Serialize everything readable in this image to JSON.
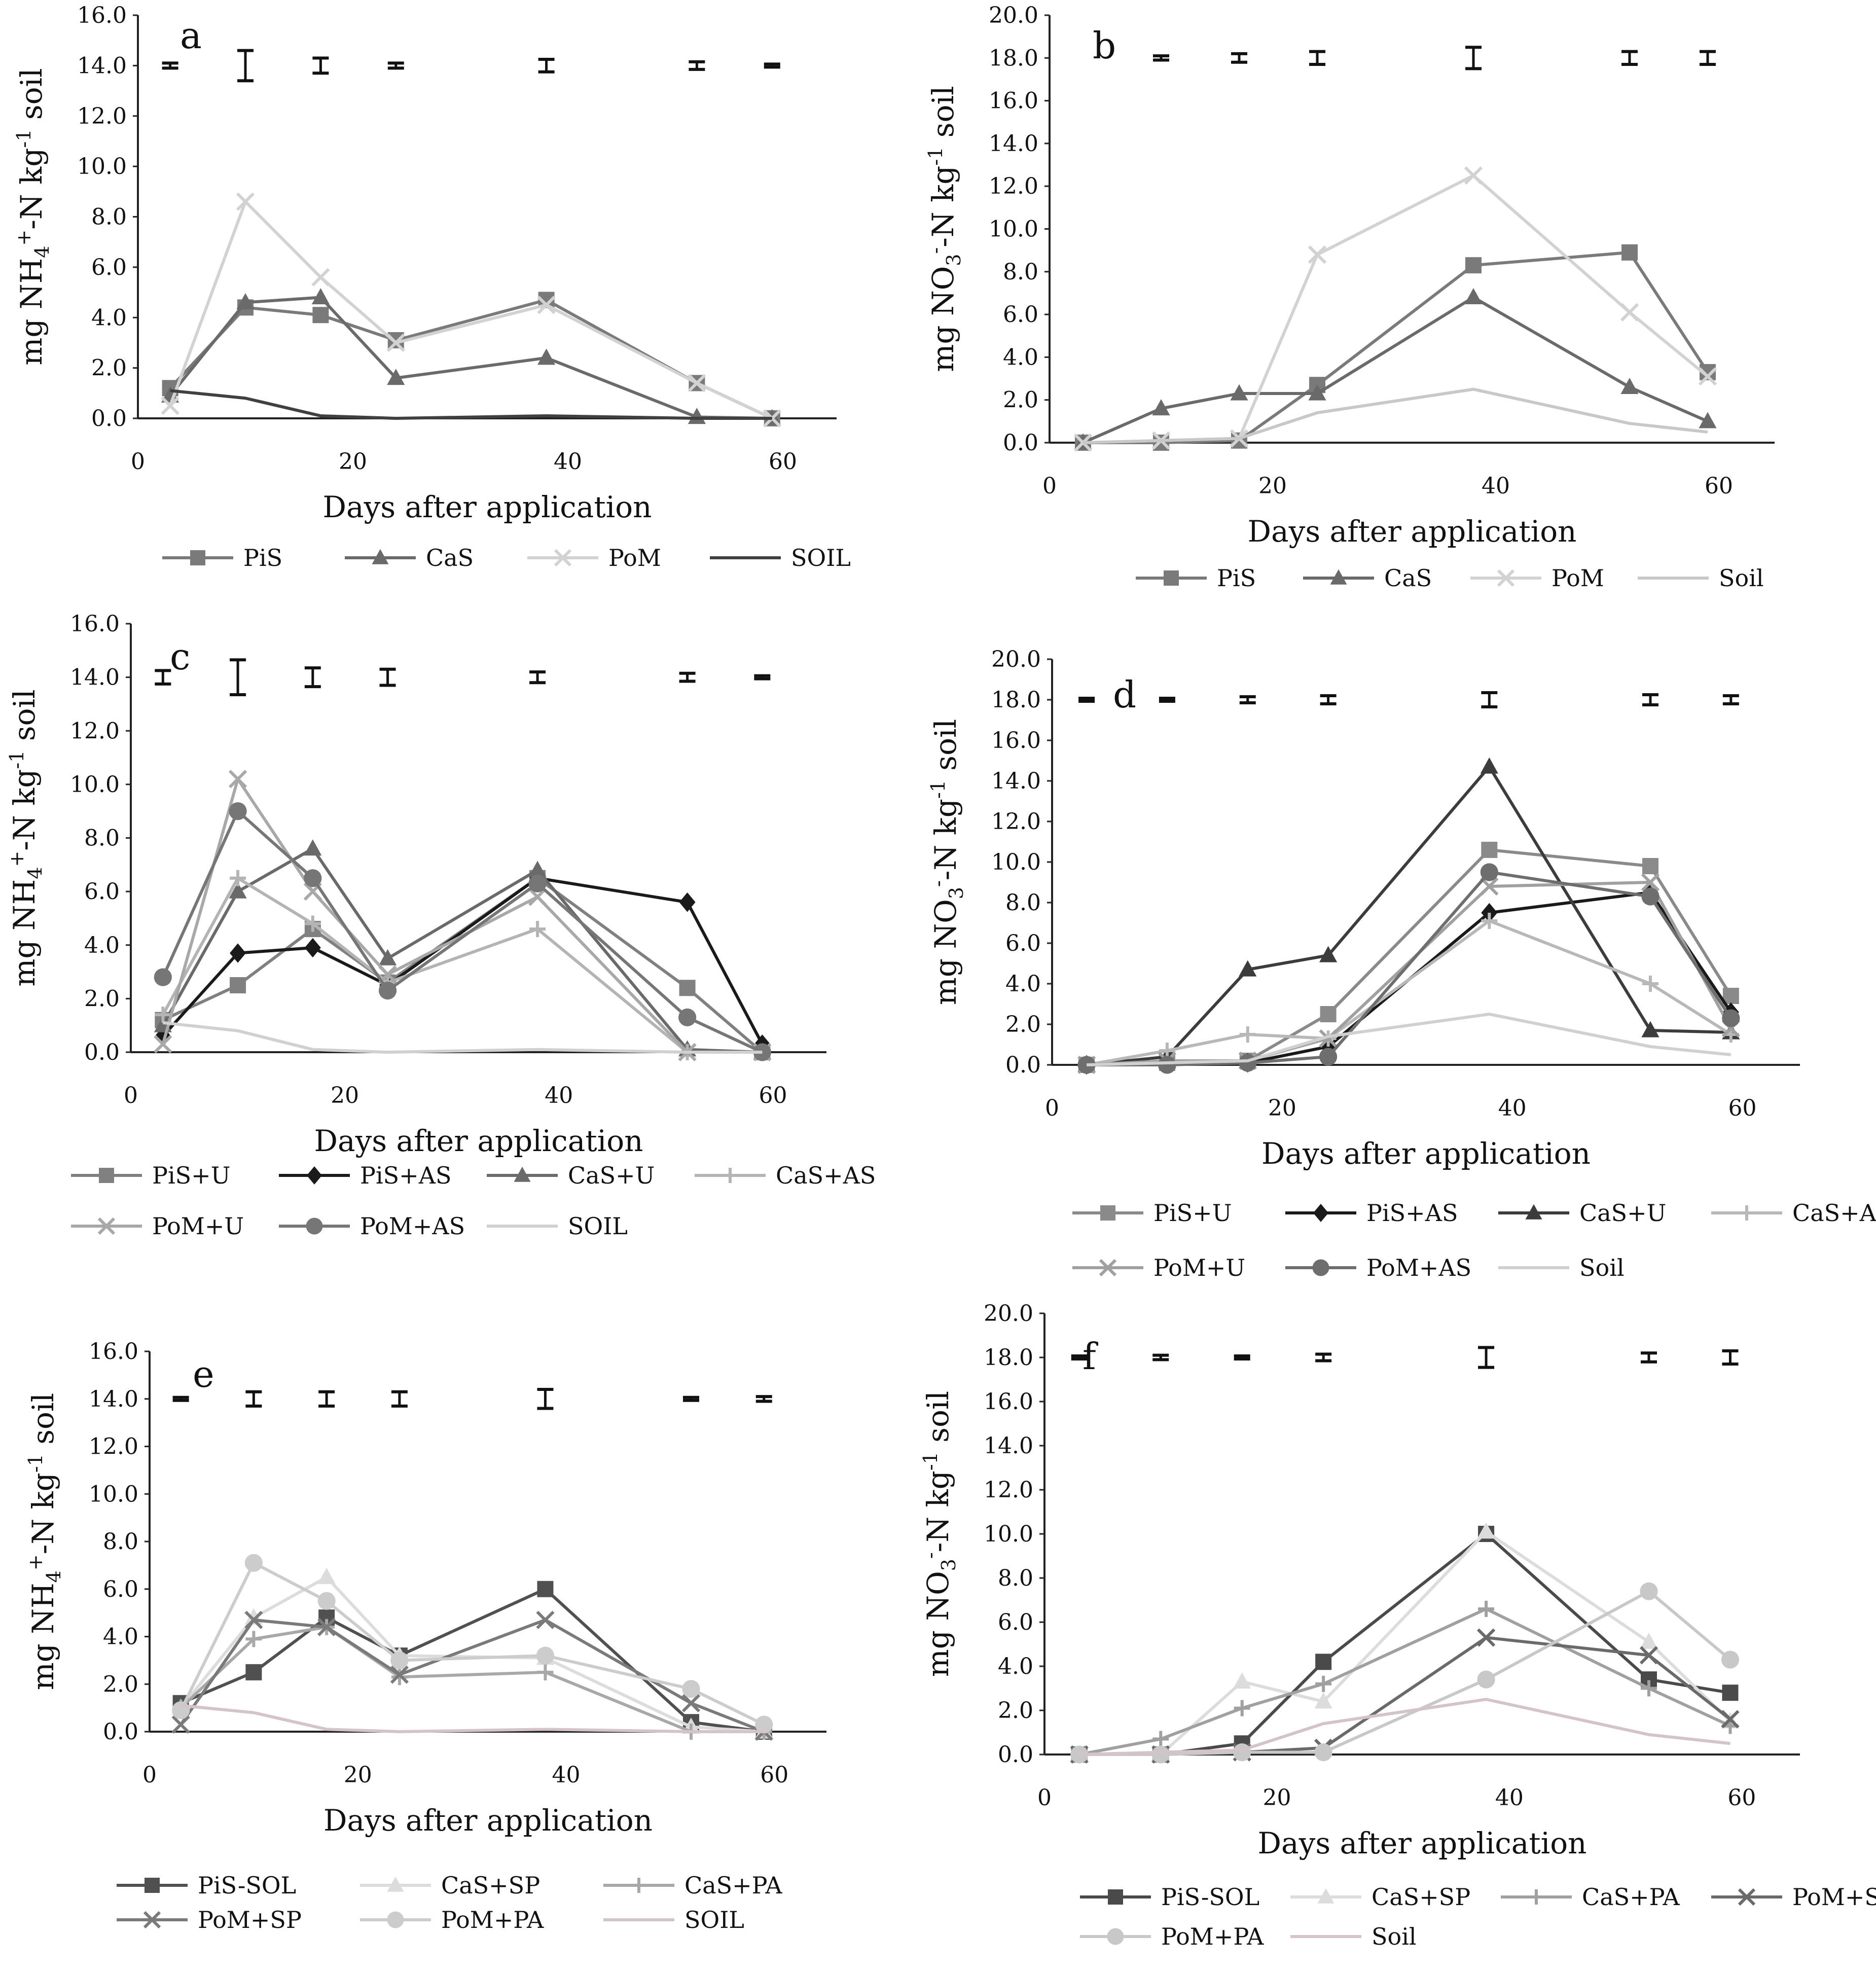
{
  "chart_data": [
    {
      "panel": "a",
      "type": "line",
      "xlabel": "Days after application",
      "ylabel_parts": [
        "mg NH",
        "4",
        "+",
        "-N  kg",
        "-1",
        " soil"
      ],
      "xlim": [
        0,
        65
      ],
      "xticks": [
        0,
        20,
        40,
        60
      ],
      "ylim": [
        0,
        16
      ],
      "yticks": [
        0.0,
        2.0,
        4.0,
        6.0,
        8.0,
        10.0,
        12.0,
        14.0,
        16.0
      ],
      "legend_cols": 4,
      "errorbars": {
        "y": 14.0,
        "points": [
          [
            3,
            0.1
          ],
          [
            10,
            0.6
          ],
          [
            17,
            0.3
          ],
          [
            24,
            0.1
          ],
          [
            38,
            0.25
          ],
          [
            52,
            0.15
          ],
          [
            59,
            0.05
          ]
        ]
      },
      "series": [
        {
          "name": "PiS",
          "color": "#7a7a7a",
          "marker": "square",
          "x": [
            3,
            10,
            17,
            24,
            38,
            52,
            59
          ],
          "y": [
            1.2,
            4.4,
            4.1,
            3.1,
            4.7,
            1.4,
            0.0
          ]
        },
        {
          "name": "CaS",
          "color": "#6a6a6a",
          "marker": "triangle",
          "x": [
            3,
            10,
            17,
            24,
            38,
            52,
            59
          ],
          "y": [
            0.9,
            4.6,
            4.8,
            1.6,
            2.4,
            0.05,
            0.0
          ]
        },
        {
          "name": "PoM",
          "color": "#d2d2d2",
          "marker": "x",
          "x": [
            3,
            10,
            17,
            24,
            38,
            52,
            59
          ],
          "y": [
            0.5,
            8.6,
            5.6,
            3.0,
            4.5,
            1.4,
            0.0
          ]
        },
        {
          "name": "SOIL",
          "color": "#404040",
          "marker": "none",
          "x": [
            3,
            10,
            17,
            24,
            38,
            52,
            59
          ],
          "y": [
            1.1,
            0.8,
            0.1,
            0.0,
            0.1,
            0.0,
            0.0
          ]
        }
      ]
    },
    {
      "panel": "b",
      "type": "line",
      "xlabel": "Days after application",
      "ylabel_parts": [
        "mg NO",
        "3",
        "-",
        "-N kg",
        "-1",
        " soil"
      ],
      "xlim": [
        0,
        65
      ],
      "xticks": [
        0,
        20,
        40,
        60
      ],
      "ylim": [
        0,
        20
      ],
      "yticks": [
        0.0,
        2.0,
        4.0,
        6.0,
        8.0,
        10.0,
        12.0,
        14.0,
        16.0,
        18.0,
        20.0
      ],
      "legend_cols": 4,
      "errorbars": {
        "y": 18.0,
        "points": [
          [
            10,
            0.1
          ],
          [
            17,
            0.2
          ],
          [
            24,
            0.3
          ],
          [
            38,
            0.5
          ],
          [
            52,
            0.3
          ],
          [
            59,
            0.3
          ]
        ]
      },
      "series": [
        {
          "name": "PiS",
          "color": "#7a7a7a",
          "marker": "square",
          "x": [
            3,
            10,
            17,
            24,
            38,
            52,
            59
          ],
          "y": [
            0.0,
            0.0,
            0.1,
            2.7,
            8.3,
            8.9,
            3.3
          ]
        },
        {
          "name": "CaS",
          "color": "#6a6a6a",
          "marker": "triangle",
          "x": [
            3,
            10,
            17,
            24,
            38,
            52,
            59
          ],
          "y": [
            0.0,
            1.6,
            2.3,
            2.3,
            6.8,
            2.6,
            1.0
          ]
        },
        {
          "name": "PoM",
          "color": "#d2d2d2",
          "marker": "x",
          "x": [
            3,
            10,
            17,
            24,
            38,
            52,
            59
          ],
          "y": [
            0.0,
            0.1,
            0.2,
            8.8,
            12.5,
            6.1,
            3.1
          ]
        },
        {
          "name": "Soil",
          "color": "#c8c8c8",
          "marker": "none",
          "x": [
            3,
            10,
            17,
            24,
            38,
            52,
            59
          ],
          "y": [
            0.0,
            0.1,
            0.2,
            1.4,
            2.5,
            0.9,
            0.5
          ]
        }
      ]
    },
    {
      "panel": "c",
      "type": "line",
      "xlabel": "Days after application",
      "ylabel_parts": [
        "mg NH",
        "4",
        "+",
        "-N  kg",
        "-1",
        " soil"
      ],
      "xlim": [
        0,
        65
      ],
      "xticks": [
        0,
        20,
        40,
        60
      ],
      "ylim": [
        0,
        16
      ],
      "yticks": [
        0.0,
        2.0,
        4.0,
        6.0,
        8.0,
        10.0,
        12.0,
        14.0,
        16.0
      ],
      "legend_cols": 4,
      "errorbars": {
        "y": 14.0,
        "points": [
          [
            3,
            0.25
          ],
          [
            10,
            0.65
          ],
          [
            17,
            0.35
          ],
          [
            24,
            0.3
          ],
          [
            38,
            0.2
          ],
          [
            52,
            0.15
          ],
          [
            59,
            0.05
          ]
        ]
      },
      "series": [
        {
          "name": "PiS+U",
          "color": "#808080",
          "marker": "square",
          "x": [
            3,
            10,
            17,
            24,
            38,
            52,
            59
          ],
          "y": [
            1.2,
            2.5,
            4.6,
            2.6,
            6.5,
            2.4,
            0.0
          ]
        },
        {
          "name": "PiS+AS",
          "color": "#1a1a1a",
          "marker": "diamond",
          "x": [
            3,
            10,
            17,
            24,
            38,
            52,
            59
          ],
          "y": [
            0.6,
            3.7,
            3.9,
            2.5,
            6.5,
            5.6,
            0.3
          ]
        },
        {
          "name": "CaS+U",
          "color": "#6a6a6a",
          "marker": "triangle",
          "x": [
            3,
            10,
            17,
            24,
            38,
            52,
            59
          ],
          "y": [
            1.0,
            6.0,
            7.6,
            3.5,
            6.8,
            0.1,
            0.0
          ]
        },
        {
          "name": "CaS+AS",
          "color": "#b4b4b4",
          "marker": "plus",
          "x": [
            3,
            10,
            17,
            24,
            38,
            52,
            59
          ],
          "y": [
            1.4,
            6.5,
            4.8,
            2.6,
            4.6,
            0.0,
            0.0
          ]
        },
        {
          "name": "PoM+U",
          "color": "#a8a8a8",
          "marker": "x",
          "x": [
            3,
            10,
            17,
            24,
            38,
            52,
            59
          ],
          "y": [
            0.3,
            10.2,
            6.0,
            2.9,
            5.8,
            0.0,
            0.0
          ]
        },
        {
          "name": "PoM+AS",
          "color": "#767676",
          "marker": "circle",
          "x": [
            3,
            10,
            17,
            24,
            38,
            52,
            59
          ],
          "y": [
            2.8,
            9.0,
            6.5,
            2.3,
            6.3,
            1.3,
            0.0
          ]
        },
        {
          "name": "SOIL",
          "color": "#d0d0d0",
          "marker": "none",
          "x": [
            3,
            10,
            17,
            24,
            38,
            52,
            59
          ],
          "y": [
            1.1,
            0.8,
            0.1,
            0.0,
            0.1,
            0.0,
            0.0
          ]
        }
      ]
    },
    {
      "panel": "d",
      "type": "line",
      "xlabel": "Days after application",
      "ylabel_parts": [
        "mg NO",
        "3",
        "-",
        "-N kg",
        "-1",
        " soil"
      ],
      "xlim": [
        0,
        65
      ],
      "xticks": [
        0,
        20,
        40,
        60
      ],
      "ylim": [
        0,
        20
      ],
      "yticks": [
        0.0,
        2.0,
        4.0,
        6.0,
        8.0,
        10.0,
        12.0,
        14.0,
        16.0,
        18.0,
        20.0
      ],
      "legend_cols": 4,
      "errorbars": {
        "y": 18.0,
        "points": [
          [
            3,
            0.05
          ],
          [
            10,
            0.05
          ],
          [
            17,
            0.15
          ],
          [
            24,
            0.2
          ],
          [
            38,
            0.35
          ],
          [
            52,
            0.25
          ],
          [
            59,
            0.2
          ]
        ]
      },
      "series": [
        {
          "name": "PiS+U",
          "color": "#8a8a8a",
          "marker": "square",
          "x": [
            3,
            10,
            17,
            24,
            38,
            52,
            59
          ],
          "y": [
            0.0,
            0.1,
            0.2,
            2.5,
            10.6,
            9.8,
            3.4
          ]
        },
        {
          "name": "PiS+AS",
          "color": "#1a1a1a",
          "marker": "diamond",
          "x": [
            3,
            10,
            17,
            24,
            38,
            52,
            59
          ],
          "y": [
            0.0,
            0.1,
            0.1,
            0.9,
            7.5,
            8.5,
            2.6
          ]
        },
        {
          "name": "CaS+U",
          "color": "#3c3c3c",
          "marker": "triangle",
          "x": [
            3,
            10,
            17,
            24,
            38,
            52,
            59
          ],
          "y": [
            0.0,
            0.4,
            4.7,
            5.4,
            14.7,
            1.7,
            1.6
          ]
        },
        {
          "name": "CaS+AS",
          "color": "#b8b8b8",
          "marker": "plus",
          "x": [
            3,
            10,
            17,
            24,
            38,
            52,
            59
          ],
          "y": [
            0.0,
            0.7,
            1.5,
            1.3,
            7.1,
            4.0,
            1.5
          ]
        },
        {
          "name": "PoM+U",
          "color": "#a0a0a0",
          "marker": "x",
          "x": [
            3,
            10,
            17,
            24,
            38,
            52,
            59
          ],
          "y": [
            0.0,
            0.2,
            0.2,
            1.3,
            8.8,
            9.0,
            1.8
          ]
        },
        {
          "name": "PoM+AS",
          "color": "#6e6e6e",
          "marker": "circle",
          "x": [
            3,
            10,
            17,
            24,
            38,
            52,
            59
          ],
          "y": [
            0.0,
            0.0,
            0.1,
            0.4,
            9.5,
            8.3,
            2.3
          ]
        },
        {
          "name": "Soil",
          "color": "#d0d0d0",
          "marker": "none",
          "x": [
            3,
            10,
            17,
            24,
            38,
            52,
            59
          ],
          "y": [
            0.0,
            0.1,
            0.2,
            1.4,
            2.5,
            0.9,
            0.5
          ]
        }
      ]
    },
    {
      "panel": "e",
      "type": "line",
      "xlabel": "Days after application",
      "ylabel_parts": [
        "mg NH",
        "4",
        "+",
        "-N  kg",
        "-1",
        " soil"
      ],
      "xlim": [
        0,
        65
      ],
      "xticks": [
        0,
        20,
        40,
        60
      ],
      "ylim": [
        0,
        16
      ],
      "yticks": [
        0.0,
        2.0,
        4.0,
        6.0,
        8.0,
        10.0,
        12.0,
        14.0,
        16.0
      ],
      "legend_cols": 3,
      "errorbars": {
        "y": 14.0,
        "points": [
          [
            3,
            0.05
          ],
          [
            10,
            0.3
          ],
          [
            17,
            0.3
          ],
          [
            24,
            0.3
          ],
          [
            38,
            0.4
          ],
          [
            52,
            0.05
          ],
          [
            59,
            0.1
          ]
        ]
      },
      "series": [
        {
          "name": "PiS-SOL",
          "color": "#505050",
          "marker": "square",
          "x": [
            3,
            10,
            17,
            24,
            38,
            52,
            59
          ],
          "y": [
            1.2,
            2.5,
            4.8,
            3.2,
            6.0,
            0.4,
            0.0
          ]
        },
        {
          "name": "CaS+SP",
          "color": "#dcdcdc",
          "marker": "triangle",
          "x": [
            3,
            10,
            17,
            24,
            38,
            52,
            59
          ],
          "y": [
            1.0,
            4.8,
            6.5,
            3.2,
            3.1,
            0.2,
            0.0
          ]
        },
        {
          "name": "CaS+PA",
          "color": "#a8a8a8",
          "marker": "plus",
          "x": [
            3,
            10,
            17,
            24,
            38,
            52,
            59
          ],
          "y": [
            1.0,
            3.9,
            4.4,
            2.3,
            2.5,
            0.0,
            0.0
          ]
        },
        {
          "name": "PoM+SP",
          "color": "#7a7a7a",
          "marker": "x",
          "x": [
            3,
            10,
            17,
            24,
            38,
            52,
            59
          ],
          "y": [
            0.3,
            4.7,
            4.4,
            2.4,
            4.7,
            1.2,
            0.0
          ]
        },
        {
          "name": "PoM+PA",
          "color": "#cccccc",
          "marker": "circle",
          "x": [
            3,
            10,
            17,
            24,
            38,
            52,
            59
          ],
          "y": [
            0.9,
            7.1,
            5.5,
            3.0,
            3.2,
            1.8,
            0.3
          ]
        },
        {
          "name": "SOIL",
          "color": "#d4c4c8",
          "marker": "none",
          "x": [
            3,
            10,
            17,
            24,
            38,
            52,
            59
          ],
          "y": [
            1.1,
            0.8,
            0.1,
            0.0,
            0.1,
            0.0,
            0.0
          ]
        }
      ]
    },
    {
      "panel": "f",
      "type": "line",
      "xlabel": "Days after application",
      "ylabel_parts": [
        "mg NO",
        "3",
        "-",
        "-N kg",
        "-1",
        " soil"
      ],
      "xlim": [
        0,
        65
      ],
      "xticks": [
        0,
        20,
        40,
        60
      ],
      "ylim": [
        0,
        20
      ],
      "yticks": [
        0.0,
        2.0,
        4.0,
        6.0,
        8.0,
        10.0,
        12.0,
        14.0,
        16.0,
        18.0,
        20.0
      ],
      "legend_cols": 4,
      "errorbars": {
        "y": 18.0,
        "points": [
          [
            3,
            0.05
          ],
          [
            10,
            0.1
          ],
          [
            17,
            0.05
          ],
          [
            24,
            0.15
          ],
          [
            38,
            0.45
          ],
          [
            52,
            0.2
          ],
          [
            59,
            0.3
          ]
        ]
      },
      "series": [
        {
          "name": "PiS-SOL",
          "color": "#4a4a4a",
          "marker": "square",
          "x": [
            3,
            10,
            17,
            24,
            38,
            52,
            59
          ],
          "y": [
            0.0,
            0.0,
            0.5,
            4.2,
            10.0,
            3.4,
            2.8
          ]
        },
        {
          "name": "CaS+SP",
          "color": "#dcdcdc",
          "marker": "triangle",
          "x": [
            3,
            10,
            17,
            24,
            38,
            52,
            59
          ],
          "y": [
            0.0,
            0.0,
            3.3,
            2.4,
            10.1,
            5.1,
            1.5
          ]
        },
        {
          "name": "CaS+PA",
          "color": "#a0a0a0",
          "marker": "plus",
          "x": [
            3,
            10,
            17,
            24,
            38,
            52,
            59
          ],
          "y": [
            0.0,
            0.7,
            2.1,
            3.2,
            6.6,
            3.0,
            1.3
          ]
        },
        {
          "name": "PoM+SP",
          "color": "#6a6a6a",
          "marker": "x",
          "x": [
            3,
            10,
            17,
            24,
            38,
            52,
            59
          ],
          "y": [
            0.0,
            0.0,
            0.1,
            0.3,
            5.3,
            4.5,
            1.6
          ]
        },
        {
          "name": "PoM+PA",
          "color": "#c8c8c8",
          "marker": "circle",
          "x": [
            3,
            10,
            17,
            24,
            38,
            52,
            59
          ],
          "y": [
            0.0,
            0.0,
            0.1,
            0.1,
            3.4,
            7.4,
            4.3
          ]
        },
        {
          "name": "Soil",
          "color": "#d4c4c8",
          "marker": "none",
          "x": [
            3,
            10,
            17,
            24,
            38,
            52,
            59
          ],
          "y": [
            0.0,
            0.1,
            0.2,
            1.4,
            2.5,
            0.9,
            0.5
          ]
        }
      ]
    }
  ]
}
